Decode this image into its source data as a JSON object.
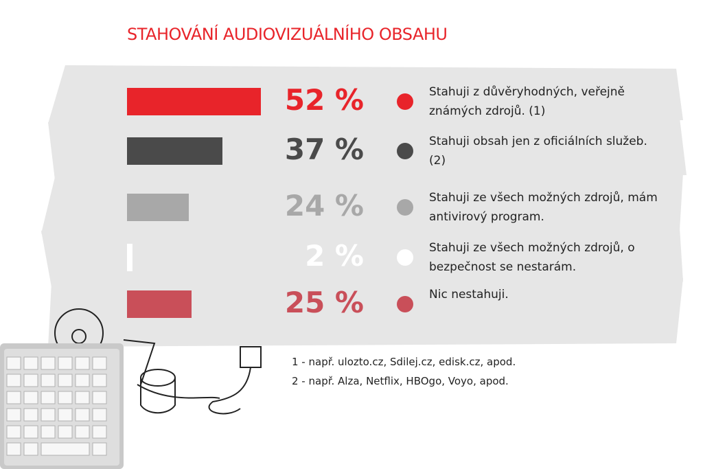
{
  "chart_data": {
    "type": "bar",
    "orientation": "horizontal",
    "title": "STAHOVÁNÍ AUDIOVIZUÁLNÍHO OBSAHU",
    "categories": [
      "Stahuji z důvěryhodných, veřejně známých zdrojů. (1)",
      "Stahuji obsah jen z oficiálních služeb.  (2)",
      "Stahuji ze všech možných zdrojů, mám antivirový program.",
      "Stahuji ze všech možných zdrojů, o bezpečnost se nestarám.",
      "Nic nestahuji."
    ],
    "values": [
      52,
      37,
      24,
      2,
      25
    ],
    "value_labels": [
      "52 %",
      "37 %",
      "24 %",
      "2 %",
      "25 %"
    ],
    "colors": [
      "#e8242a",
      "#4a4a4a",
      "#a8a8a8",
      "#ffffff",
      "#c94f59"
    ],
    "notes": [
      "1 - např. ulozto.cz, Sdilej.cz, edisk.cz, apod.",
      "2 - např. Alza, Netflix, HBOgo, Voyo, apod."
    ]
  }
}
